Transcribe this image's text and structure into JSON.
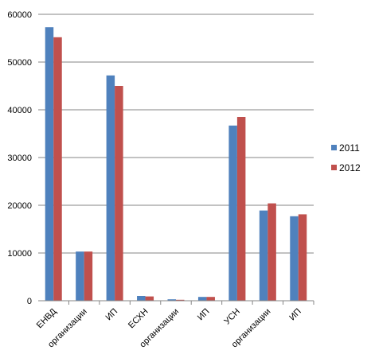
{
  "chart_data": {
    "type": "bar",
    "title": "",
    "xlabel": "",
    "ylabel": "",
    "categories": [
      "ЕНВД",
      "организации",
      "ИП",
      "ЕСХН",
      "организации",
      "ИП",
      "УСН",
      "организации",
      "ИП"
    ],
    "series": [
      {
        "name": "2011",
        "color": "#4f81bd",
        "values": [
          57300,
          10300,
          47200,
          1000,
          300,
          800,
          36700,
          18900,
          17700
        ]
      },
      {
        "name": "2012",
        "color": "#c0504d",
        "values": [
          55200,
          10300,
          45000,
          900,
          200,
          800,
          38500,
          20400,
          18100
        ]
      }
    ],
    "y_ticks": [
      "0",
      "10000",
      "20000",
      "30000",
      "40000",
      "50000",
      "60000"
    ],
    "ylim": [
      0,
      60000
    ],
    "grid": true,
    "legend_position": "right"
  }
}
